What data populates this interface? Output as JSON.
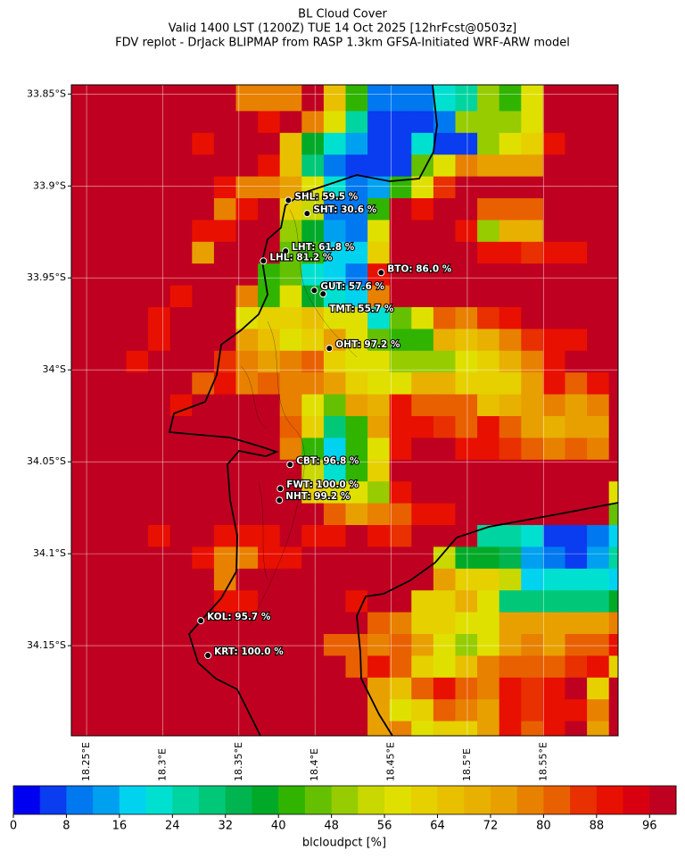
{
  "title": "BL Cloud Cover",
  "subtitle": [
    "Valid 1400 LST (1200Z) TUE 14 Oct 2025 [12hrFcst@0503z]",
    "FDV replot - DrJack BLIPMAP from RASP 1.3km GFSA-Initiated WRF-ARW model"
  ],
  "map": {
    "xlim": [
      18.24,
      18.599
    ],
    "ylim": [
      -34.199,
      -33.845
    ],
    "xticks": [
      {
        "value": 18.25,
        "label": "18.25°E"
      },
      {
        "value": 18.3,
        "label": "18.3°E"
      },
      {
        "value": 18.35,
        "label": "18.35°E"
      },
      {
        "value": 18.4,
        "label": "18.4°E"
      },
      {
        "value": 18.45,
        "label": "18.45°E"
      },
      {
        "value": 18.5,
        "label": "18.5°E"
      },
      {
        "value": 18.55,
        "label": "18.55°E"
      }
    ],
    "yticks": [
      {
        "value": -33.85,
        "label": "33.85°S"
      },
      {
        "value": -33.9,
        "label": "33.9°S"
      },
      {
        "value": -33.95,
        "label": "33.95°S"
      },
      {
        "value": -34,
        "label": "34°S"
      },
      {
        "value": -34.05,
        "label": "34.05°S"
      },
      {
        "value": -34.1,
        "label": "34.1°S"
      },
      {
        "value": -34.15,
        "label": "34.15°S"
      }
    ],
    "grid_lines": true,
    "grid": [
      [
        98,
        98,
        98,
        98,
        98,
        98,
        98,
        98,
        76,
        76,
        76,
        98,
        64,
        40,
        10,
        10,
        10,
        20,
        26,
        48,
        42,
        58,
        98,
        98,
        98,
        98
      ],
      [
        98,
        98,
        98,
        98,
        98,
        98,
        98,
        98,
        98,
        90,
        98,
        76,
        56,
        26,
        4,
        4,
        4,
        10,
        48,
        48,
        48,
        58,
        98,
        98,
        98,
        98
      ],
      [
        98,
        98,
        98,
        98,
        98,
        98,
        90,
        98,
        98,
        98,
        64,
        38,
        20,
        12,
        4,
        4,
        20,
        6,
        6,
        50,
        56,
        60,
        90,
        98,
        98,
        98
      ],
      [
        98,
        98,
        98,
        98,
        98,
        98,
        98,
        98,
        98,
        90,
        64,
        30,
        8,
        4,
        4,
        4,
        44,
        58,
        76,
        72,
        72,
        72,
        98,
        98,
        98,
        98
      ],
      [
        98,
        98,
        98,
        98,
        98,
        98,
        98,
        90,
        78,
        76,
        72,
        56,
        20,
        8,
        12,
        42,
        56,
        84,
        98,
        98,
        98,
        98,
        98,
        98,
        98,
        98
      ],
      [
        98,
        98,
        98,
        98,
        98,
        98,
        98,
        76,
        90,
        98,
        60,
        52,
        10,
        8,
        40,
        98,
        90,
        98,
        98,
        80,
        80,
        80,
        98,
        98,
        98,
        98
      ],
      [
        98,
        98,
        98,
        98,
        98,
        98,
        90,
        90,
        98,
        98,
        50,
        38,
        12,
        10,
        58,
        98,
        98,
        98,
        90,
        48,
        70,
        70,
        98,
        98,
        98,
        98
      ],
      [
        98,
        98,
        98,
        98,
        98,
        98,
        72,
        98,
        98,
        98,
        44,
        40,
        18,
        18,
        60,
        98,
        98,
        98,
        98,
        90,
        90,
        84,
        90,
        90,
        98,
        98
      ],
      [
        98,
        98,
        98,
        98,
        98,
        98,
        98,
        98,
        98,
        40,
        44,
        20,
        16,
        8,
        90,
        98,
        98,
        98,
        98,
        98,
        98,
        98,
        98,
        98,
        98,
        98
      ],
      [
        98,
        98,
        98,
        98,
        98,
        90,
        98,
        98,
        78,
        40,
        56,
        38,
        22,
        16,
        76,
        98,
        98,
        98,
        98,
        98,
        98,
        98,
        98,
        98,
        98,
        98
      ],
      [
        98,
        98,
        98,
        98,
        90,
        98,
        98,
        98,
        56,
        60,
        60,
        64,
        56,
        56,
        20,
        44,
        56,
        80,
        78,
        84,
        90,
        98,
        98,
        98,
        98,
        98
      ],
      [
        98,
        98,
        98,
        98,
        90,
        98,
        98,
        98,
        72,
        64,
        58,
        60,
        72,
        56,
        44,
        42,
        40,
        70,
        64,
        70,
        76,
        84,
        90,
        90,
        98,
        98
      ],
      [
        98,
        98,
        98,
        90,
        98,
        98,
        98,
        84,
        76,
        72,
        76,
        80,
        60,
        56,
        58,
        50,
        50,
        50,
        58,
        60,
        70,
        76,
        90,
        98,
        98,
        98
      ],
      [
        98,
        98,
        98,
        98,
        98,
        98,
        80,
        90,
        76,
        80,
        76,
        76,
        72,
        60,
        56,
        58,
        70,
        70,
        60,
        60,
        60,
        72,
        90,
        80,
        90,
        98
      ],
      [
        98,
        98,
        98,
        98,
        98,
        90,
        98,
        98,
        98,
        98,
        76,
        58,
        44,
        72,
        70,
        90,
        80,
        80,
        80,
        64,
        70,
        72,
        76,
        72,
        76,
        98
      ],
      [
        98,
        98,
        98,
        98,
        98,
        98,
        98,
        98,
        98,
        98,
        80,
        60,
        28,
        42,
        72,
        90,
        90,
        84,
        80,
        90,
        80,
        72,
        70,
        72,
        72,
        98
      ],
      [
        98,
        98,
        98,
        98,
        98,
        98,
        98,
        98,
        98,
        98,
        76,
        40,
        18,
        40,
        58,
        90,
        98,
        98,
        90,
        90,
        84,
        80,
        76,
        80,
        78,
        98
      ],
      [
        98,
        98,
        98,
        98,
        98,
        98,
        98,
        98,
        98,
        98,
        98,
        52,
        20,
        40,
        60,
        98,
        98,
        98,
        98,
        98,
        98,
        98,
        98,
        98,
        98,
        98
      ],
      [
        98,
        98,
        98,
        98,
        98,
        98,
        98,
        98,
        98,
        98,
        98,
        60,
        56,
        58,
        50,
        90,
        98,
        98,
        98,
        98,
        98,
        98,
        98,
        98,
        98,
        58
      ],
      [
        98,
        98,
        98,
        98,
        98,
        98,
        98,
        98,
        98,
        98,
        98,
        98,
        80,
        72,
        76,
        80,
        90,
        90,
        98,
        98,
        98,
        98,
        98,
        98,
        98,
        44
      ],
      [
        98,
        98,
        98,
        98,
        90,
        98,
        98,
        90,
        90,
        90,
        98,
        90,
        90,
        98,
        90,
        84,
        98,
        98,
        98,
        26,
        26,
        22,
        6,
        6,
        8,
        18
      ],
      [
        98,
        98,
        98,
        98,
        98,
        98,
        90,
        76,
        76,
        90,
        90,
        98,
        98,
        98,
        98,
        98,
        98,
        52,
        38,
        38,
        34,
        14,
        10,
        6,
        12,
        26
      ],
      [
        98,
        98,
        98,
        98,
        98,
        98,
        98,
        76,
        98,
        98,
        98,
        98,
        98,
        98,
        98,
        98,
        98,
        72,
        60,
        60,
        52,
        16,
        20,
        20,
        20,
        18
      ],
      [
        98,
        98,
        98,
        98,
        98,
        98,
        98,
        90,
        90,
        98,
        98,
        98,
        98,
        90,
        98,
        98,
        60,
        60,
        70,
        58,
        30,
        30,
        28,
        28,
        28,
        36
      ],
      [
        98,
        98,
        98,
        98,
        98,
        98,
        98,
        98,
        98,
        98,
        98,
        98,
        98,
        98,
        80,
        76,
        60,
        60,
        56,
        58,
        72,
        72,
        72,
        72,
        72,
        76
      ],
      [
        98,
        98,
        98,
        98,
        98,
        98,
        98,
        98,
        98,
        98,
        98,
        98,
        80,
        80,
        76,
        80,
        72,
        58,
        48,
        58,
        72,
        76,
        72,
        80,
        80,
        90
      ],
      [
        98,
        98,
        98,
        98,
        98,
        98,
        98,
        98,
        98,
        98,
        98,
        98,
        98,
        80,
        90,
        80,
        60,
        58,
        64,
        76,
        80,
        80,
        80,
        84,
        90,
        60
      ],
      [
        98,
        98,
        98,
        98,
        98,
        98,
        98,
        98,
        98,
        98,
        98,
        98,
        98,
        98,
        72,
        64,
        80,
        90,
        80,
        76,
        90,
        84,
        90,
        98,
        60,
        98
      ],
      [
        98,
        98,
        98,
        98,
        98,
        98,
        98,
        98,
        98,
        98,
        98,
        98,
        98,
        98,
        72,
        58,
        60,
        80,
        76,
        72,
        90,
        84,
        90,
        90,
        76,
        98
      ],
      [
        98,
        98,
        98,
        98,
        98,
        98,
        98,
        98,
        98,
        98,
        98,
        98,
        98,
        98,
        72,
        76,
        58,
        60,
        60,
        72,
        90,
        80,
        90,
        98,
        72,
        98
      ]
    ],
    "stations": [
      {
        "label": "SHL: 59.5 %",
        "lon": 18.3825,
        "lat": -33.9078
      },
      {
        "label": "SHT: 30.6 %",
        "lon": 18.3948,
        "lat": -33.915
      },
      {
        "label": "LHT: 61.8 %",
        "lon": 18.3807,
        "lat": -33.9354
      },
      {
        "label": "LHL: 81.2 %",
        "lon": 18.3661,
        "lat": -33.9408
      },
      {
        "label": "BTO: 86.0 %",
        "lon": 18.4434,
        "lat": -33.9471
      },
      {
        "label": "GUT: 57.6 %",
        "lon": 18.3995,
        "lat": -33.9568
      },
      {
        "label": "TMT: 55.7 %",
        "lon": 18.4053,
        "lat": -33.9587
      },
      {
        "label": "OHT: 97.2 %",
        "lon": 18.4094,
        "lat": -33.9883
      },
      {
        "label": "CBT: 96.8 %",
        "lon": 18.3836,
        "lat": -34.0515
      },
      {
        "label": "FWT: 100.0 %",
        "lon": 18.3772,
        "lat": -34.0646
      },
      {
        "label": "NHT: 99.2 %",
        "lon": 18.3766,
        "lat": -34.0709
      },
      {
        "label": "KOL: 95.7 %",
        "lon": 18.325,
        "lat": -34.1364
      },
      {
        "label": "KRT: 100.0 %",
        "lon": 18.3297,
        "lat": -34.1553
      }
    ]
  },
  "colorbar": {
    "lim": [
      0,
      100
    ],
    "ticks": [
      0,
      8,
      16,
      24,
      32,
      40,
      48,
      56,
      64,
      72,
      80,
      88,
      96
    ],
    "label": "blcloudpct [%]",
    "colors": [
      "#0000f0",
      "#0a3cf0",
      "#0078f0",
      "#00a0f0",
      "#00d2f0",
      "#00e0d0",
      "#00d4a0",
      "#00c878",
      "#00b450",
      "#00aa28",
      "#30b400",
      "#64c000",
      "#96cc00",
      "#c8d800",
      "#e0e000",
      "#e6d000",
      "#e8c000",
      "#e8b000",
      "#e8a000",
      "#e88000",
      "#e86000",
      "#e83000",
      "#e81000",
      "#d80010",
      "#c00020"
    ]
  }
}
